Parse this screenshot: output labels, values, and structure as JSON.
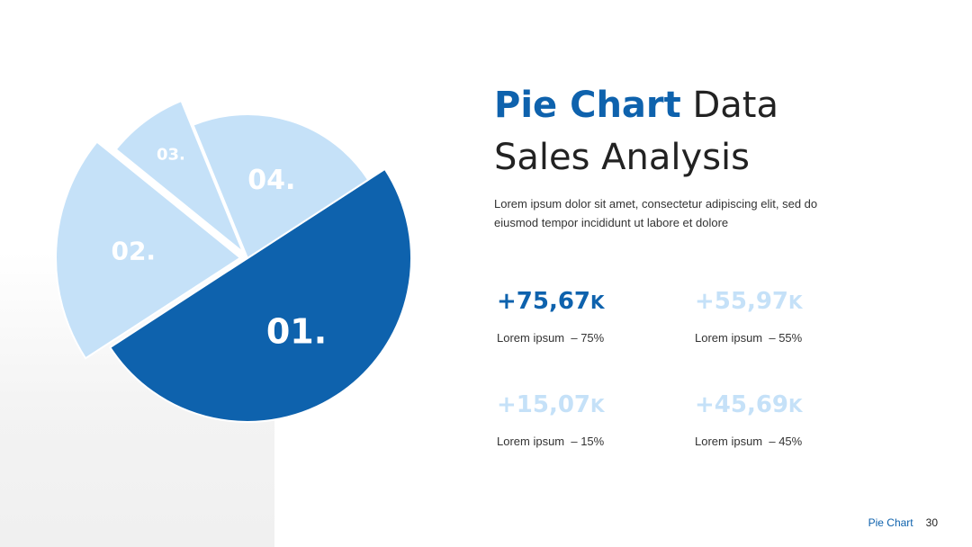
{
  "slide": {
    "title_accent": "Pie Chart",
    "title_rest": " Data",
    "title_line2": "Sales Analysis",
    "description": "Lorem ipsum dolor sit amet, consectetur adipiscing elit, sed do eiusmod tempor incididunt ut labore et dolore"
  },
  "stats": [
    {
      "value": "+75,67",
      "unit": "K",
      "label": "Lorem ipsum  – 75%",
      "color": "#0e62ad"
    },
    {
      "value": "+55,97",
      "unit": "K",
      "label": "Lorem ipsum  – 55%",
      "color": "#c5e1f8"
    },
    {
      "value": "+15,07",
      "unit": "K",
      "label": "Lorem ipsum  – 15%",
      "color": "#c5e1f8"
    },
    {
      "value": "+45,69",
      "unit": "K",
      "label": "Lorem ipsum  – 45%",
      "color": "#c5e1f8"
    }
  ],
  "chart_data": {
    "type": "pie",
    "slices": [
      {
        "label": "01.",
        "value": 50,
        "color": "#0e62ad"
      },
      {
        "label": "02.",
        "value": 20,
        "color": "#c5e1f8"
      },
      {
        "label": "03.",
        "value": 8,
        "color": "#c5e1f8"
      },
      {
        "label": "04.",
        "value": 22,
        "color": "#c5e1f8"
      }
    ]
  },
  "footer": {
    "title": "Pie Chart",
    "page": "30"
  }
}
